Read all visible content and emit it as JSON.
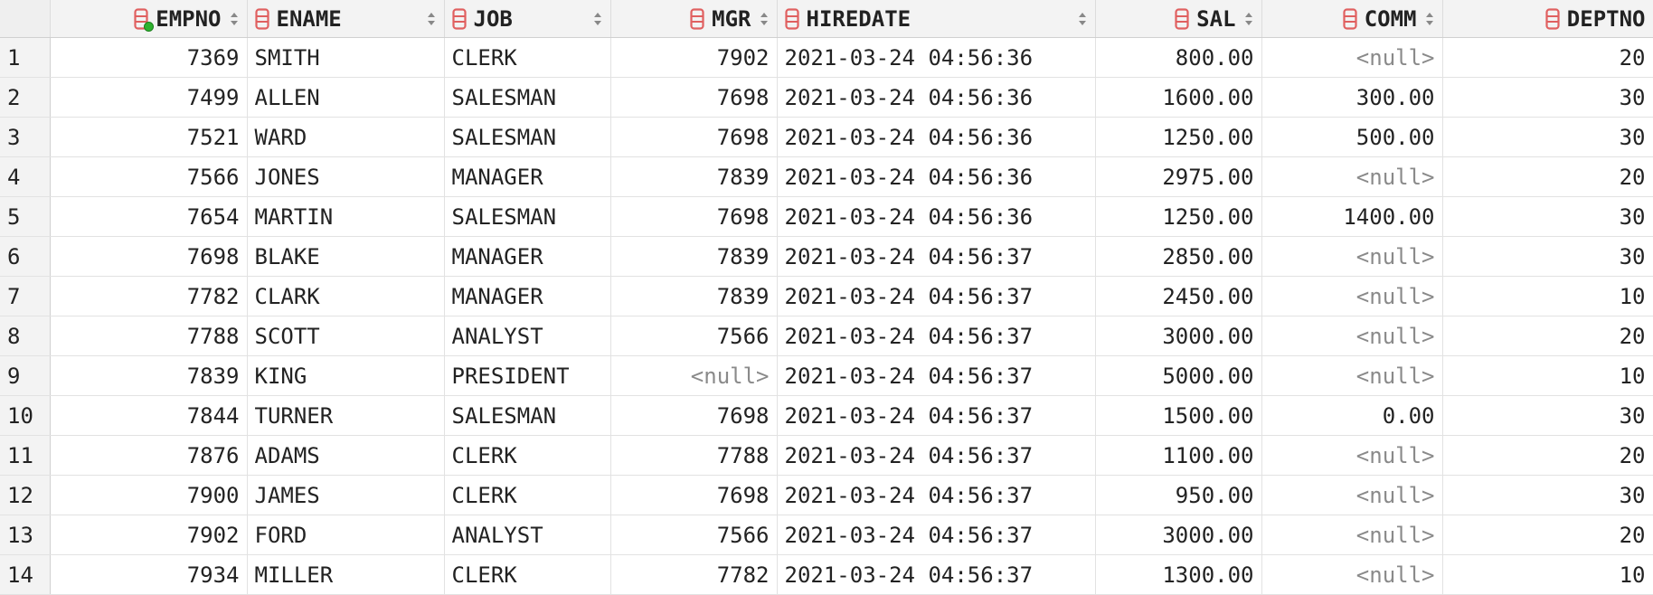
{
  "columns": [
    {
      "key": "empno",
      "label": "EMPNO",
      "align": "right",
      "icon": "table-column-icon",
      "primary_key": true
    },
    {
      "key": "ename",
      "label": "ENAME",
      "align": "left",
      "icon": "table-column-icon",
      "primary_key": false
    },
    {
      "key": "job",
      "label": "JOB",
      "align": "left",
      "icon": "table-column-icon",
      "primary_key": false
    },
    {
      "key": "mgr",
      "label": "MGR",
      "align": "right",
      "icon": "table-column-icon",
      "primary_key": false
    },
    {
      "key": "hiredate",
      "label": "HIREDATE",
      "align": "left",
      "icon": "table-column-icon",
      "primary_key": false
    },
    {
      "key": "sal",
      "label": "SAL",
      "align": "right",
      "icon": "table-column-icon",
      "primary_key": false
    },
    {
      "key": "comm",
      "label": "COMM",
      "align": "right",
      "icon": "table-column-icon",
      "primary_key": false
    },
    {
      "key": "deptno",
      "label": "DEPTNO",
      "align": "right",
      "icon": "table-column-icon",
      "primary_key": false
    }
  ],
  "null_text": "<null>",
  "colors": {
    "column_icon": "#e06060",
    "primary_key_dot": "#2fb32f",
    "null_text": "#8a8a8a",
    "header_bg": "#f3f3f3"
  },
  "rows": [
    {
      "n": "1",
      "empno": "7369",
      "ename": "SMITH",
      "job": "CLERK",
      "mgr": "7902",
      "hiredate": "2021-03-24 04:56:36",
      "sal": "800.00",
      "comm": null,
      "deptno": "20"
    },
    {
      "n": "2",
      "empno": "7499",
      "ename": "ALLEN",
      "job": "SALESMAN",
      "mgr": "7698",
      "hiredate": "2021-03-24 04:56:36",
      "sal": "1600.00",
      "comm": "300.00",
      "deptno": "30"
    },
    {
      "n": "3",
      "empno": "7521",
      "ename": "WARD",
      "job": "SALESMAN",
      "mgr": "7698",
      "hiredate": "2021-03-24 04:56:36",
      "sal": "1250.00",
      "comm": "500.00",
      "deptno": "30"
    },
    {
      "n": "4",
      "empno": "7566",
      "ename": "JONES",
      "job": "MANAGER",
      "mgr": "7839",
      "hiredate": "2021-03-24 04:56:36",
      "sal": "2975.00",
      "comm": null,
      "deptno": "20"
    },
    {
      "n": "5",
      "empno": "7654",
      "ename": "MARTIN",
      "job": "SALESMAN",
      "mgr": "7698",
      "hiredate": "2021-03-24 04:56:36",
      "sal": "1250.00",
      "comm": "1400.00",
      "deptno": "30"
    },
    {
      "n": "6",
      "empno": "7698",
      "ename": "BLAKE",
      "job": "MANAGER",
      "mgr": "7839",
      "hiredate": "2021-03-24 04:56:37",
      "sal": "2850.00",
      "comm": null,
      "deptno": "30"
    },
    {
      "n": "7",
      "empno": "7782",
      "ename": "CLARK",
      "job": "MANAGER",
      "mgr": "7839",
      "hiredate": "2021-03-24 04:56:37",
      "sal": "2450.00",
      "comm": null,
      "deptno": "10"
    },
    {
      "n": "8",
      "empno": "7788",
      "ename": "SCOTT",
      "job": "ANALYST",
      "mgr": "7566",
      "hiredate": "2021-03-24 04:56:37",
      "sal": "3000.00",
      "comm": null,
      "deptno": "20"
    },
    {
      "n": "9",
      "empno": "7839",
      "ename": "KING",
      "job": "PRESIDENT",
      "mgr": null,
      "hiredate": "2021-03-24 04:56:37",
      "sal": "5000.00",
      "comm": null,
      "deptno": "10"
    },
    {
      "n": "10",
      "empno": "7844",
      "ename": "TURNER",
      "job": "SALESMAN",
      "mgr": "7698",
      "hiredate": "2021-03-24 04:56:37",
      "sal": "1500.00",
      "comm": "0.00",
      "deptno": "30"
    },
    {
      "n": "11",
      "empno": "7876",
      "ename": "ADAMS",
      "job": "CLERK",
      "mgr": "7788",
      "hiredate": "2021-03-24 04:56:37",
      "sal": "1100.00",
      "comm": null,
      "deptno": "20"
    },
    {
      "n": "12",
      "empno": "7900",
      "ename": "JAMES",
      "job": "CLERK",
      "mgr": "7698",
      "hiredate": "2021-03-24 04:56:37",
      "sal": "950.00",
      "comm": null,
      "deptno": "30"
    },
    {
      "n": "13",
      "empno": "7902",
      "ename": "FORD",
      "job": "ANALYST",
      "mgr": "7566",
      "hiredate": "2021-03-24 04:56:37",
      "sal": "3000.00",
      "comm": null,
      "deptno": "20"
    },
    {
      "n": "14",
      "empno": "7934",
      "ename": "MILLER",
      "job": "CLERK",
      "mgr": "7782",
      "hiredate": "2021-03-24 04:56:37",
      "sal": "1300.00",
      "comm": null,
      "deptno": "10"
    }
  ]
}
